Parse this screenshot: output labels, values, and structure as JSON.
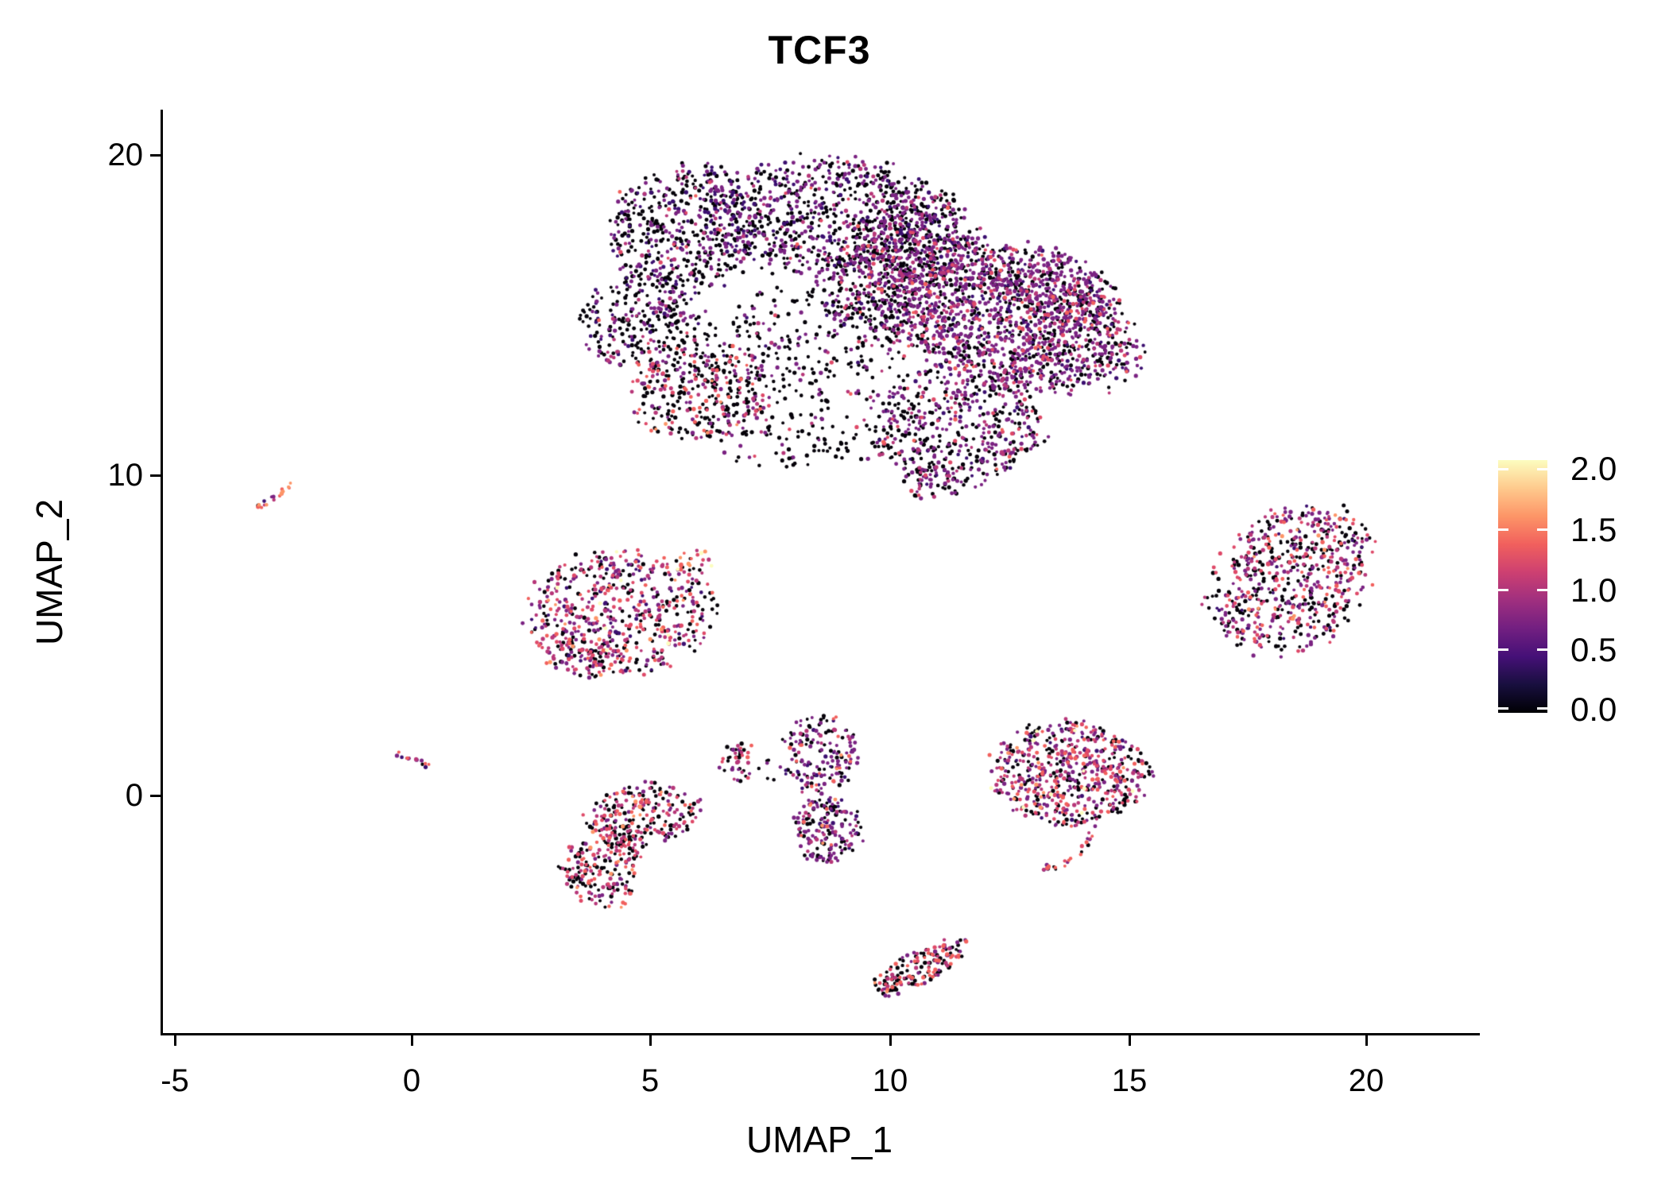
{
  "title": "TCF3",
  "axes": {
    "x_label": "UMAP_1",
    "y_label": "UMAP_2",
    "x_tick_labels": [
      "-5",
      "0",
      "5",
      "10",
      "15",
      "20"
    ],
    "y_tick_labels": [
      "20",
      "10",
      "0"
    ]
  },
  "colorbar": {
    "tick_labels": [
      "2.0",
      "1.5",
      "1.0",
      "0.5",
      "0.0"
    ],
    "gradient_bottom_to_top": [
      "#000004",
      "#180f3e",
      "#451077",
      "#721f81",
      "#9f2f7f",
      "#cd4071",
      "#f1605d",
      "#fd9567",
      "#feca8d",
      "#fcfdbf"
    ]
  },
  "chart_data": {
    "type": "scatter",
    "title": "TCF3",
    "xlabel": "UMAP_1",
    "ylabel": "UMAP_2",
    "xlim": [
      -5.2,
      22.4
    ],
    "ylim": [
      -7.5,
      21.4
    ],
    "x_ticks": [
      -5,
      0,
      5,
      10,
      15,
      20
    ],
    "y_ticks": [
      0,
      10,
      20
    ],
    "grid": false,
    "legend_position": "right",
    "colorbar_ticks": [
      0.0,
      0.5,
      1.0,
      1.5,
      2.0
    ],
    "colormap": "magma",
    "expression_range": [
      0.0,
      2.0
    ],
    "seed": 20,
    "palette": {
      "black": "#050109",
      "darkpurple": "#3b0f70",
      "purple": "#7b2382",
      "magenta": "#b73779",
      "pink": "#de4968",
      "salmon": "#f1605d",
      "orange": "#fd9567",
      "peach": "#feca8d",
      "cream": "#fcfdbf"
    },
    "color_rank": [
      "black",
      "darkpurple",
      "purple",
      "magenta",
      "pink",
      "salmon",
      "orange",
      "peach",
      "cream"
    ],
    "clusters": [
      {
        "name": "main-upper-left-lobe",
        "type": "ellipse",
        "cx": 5.7,
        "cy": 17.7,
        "rx": 1.55,
        "ry": 2.1,
        "rot": 5,
        "n": 480,
        "colors": {
          "black": 52,
          "darkpurple": 14,
          "purple": 26,
          "magenta": 5,
          "pink": 2,
          "salmon": 1
        }
      },
      {
        "name": "main-left-tip",
        "type": "ellipse",
        "cx": 4.8,
        "cy": 14.9,
        "rx": 1.25,
        "ry": 1.35,
        "rot": -15,
        "n": 260,
        "colors": {
          "black": 58,
          "purple": 24,
          "darkpurple": 10,
          "magenta": 5,
          "pink": 2,
          "salmon": 1
        }
      },
      {
        "name": "main-bottom-left",
        "type": "ellipse",
        "cx": 6.1,
        "cy": 12.6,
        "rx": 1.5,
        "ry": 1.5,
        "rot": 0,
        "n": 340,
        "colors": {
          "black": 50,
          "purple": 18,
          "magenta": 12,
          "pink": 10,
          "salmon": 7,
          "orange": 3
        }
      },
      {
        "name": "main-top-middle",
        "type": "ellipse",
        "cx": 8.6,
        "cy": 18.1,
        "rx": 2.4,
        "ry": 1.8,
        "rot": 0,
        "n": 700,
        "colors": {
          "black": 49,
          "purple": 31,
          "darkpurple": 12,
          "magenta": 5,
          "pink": 2,
          "salmon": 1
        }
      },
      {
        "name": "main-top-dome",
        "type": "ellipse",
        "cx": 10.6,
        "cy": 17.6,
        "rx": 1.2,
        "ry": 1.5,
        "rot": 0,
        "n": 260,
        "colors": {
          "black": 45,
          "purple": 36,
          "darkpurple": 8,
          "magenta": 7,
          "pink": 2,
          "salmon": 2
        }
      },
      {
        "name": "main-center",
        "type": "ellipse",
        "cx": 10.3,
        "cy": 16.4,
        "rx": 1.9,
        "ry": 1.7,
        "rot": -10,
        "n": 420,
        "colors": {
          "black": 44,
          "purple": 36,
          "darkpurple": 8,
          "magenta": 7,
          "pink": 3,
          "salmon": 2
        }
      },
      {
        "name": "main-right-lobe",
        "type": "ellipse",
        "cx": 12.4,
        "cy": 14.9,
        "rx": 2.9,
        "ry": 2.0,
        "rot": 17,
        "n": 1500,
        "colors": {
          "black": 33,
          "purple": 43,
          "darkpurple": 8,
          "magenta": 9,
          "pink": 5,
          "salmon": 2
        }
      },
      {
        "name": "main-right-shoulder",
        "type": "ellipse",
        "cx": 13.5,
        "cy": 15.9,
        "rx": 1.4,
        "ry": 1.15,
        "rot": 20,
        "n": 280,
        "colors": {
          "black": 30,
          "purple": 46,
          "darkpurple": 6,
          "magenta": 10,
          "pink": 6,
          "salmon": 2
        }
      },
      {
        "name": "main-sparse-middle",
        "type": "ellipse",
        "cx": 8.0,
        "cy": 13.9,
        "rx": 2.3,
        "ry": 1.9,
        "rot": 0,
        "n": 300,
        "colors": {
          "black": 68,
          "purple": 18,
          "darkpurple": 4,
          "magenta": 6,
          "pink": 3,
          "salmon": 1
        }
      },
      {
        "name": "main-bottom-lobe",
        "type": "ellipse",
        "cx": 11.5,
        "cy": 11.6,
        "rx": 1.8,
        "ry": 1.85,
        "rot": 0,
        "n": 520,
        "colors": {
          "black": 42,
          "purple": 38,
          "darkpurple": 6,
          "magenta": 8,
          "pink": 4,
          "salmon": 2
        }
      },
      {
        "name": "main-bottom-tip",
        "type": "ellipse",
        "cx": 11.0,
        "cy": 9.8,
        "rx": 0.7,
        "ry": 0.55,
        "rot": 0,
        "n": 50,
        "colors": {
          "black": 50,
          "purple": 30,
          "magenta": 12,
          "pink": 8
        }
      },
      {
        "name": "main-under-dust",
        "type": "ellipse",
        "cx": 8.3,
        "cy": 11.0,
        "rx": 1.8,
        "ry": 0.9,
        "rot": 0,
        "n": 90,
        "colors": {
          "black": 80,
          "purple": 12,
          "magenta": 5,
          "pink": 3
        }
      },
      {
        "name": "far-left-streak",
        "type": "path",
        "points": [
          [
            -3.25,
            8.95
          ],
          [
            -2.9,
            9.3
          ],
          [
            -2.55,
            9.7
          ]
        ],
        "spread": 0.1,
        "n": 20,
        "colors": {
          "salmon": 32,
          "orange": 16,
          "magenta": 18,
          "purple": 14,
          "darkpurple": 8,
          "black": 12
        }
      },
      {
        "name": "mid-left-main",
        "type": "ellipse",
        "cx": 4.4,
        "cy": 5.7,
        "rx": 1.95,
        "ry": 1.85,
        "rot": 0,
        "n": 560,
        "colors": {
          "black": 27,
          "purple": 22,
          "darkpurple": 7,
          "magenta": 18,
          "pink": 14,
          "salmon": 8,
          "orange": 2,
          "cream": 2
        }
      },
      {
        "name": "mid-left-tuft",
        "type": "ellipse",
        "cx": 5.9,
        "cy": 7.3,
        "rx": 0.5,
        "ry": 0.45,
        "rot": 0,
        "n": 24,
        "colors": {
          "black": 35,
          "salmon": 20,
          "magenta": 15,
          "pink": 10,
          "cream": 10,
          "orange": 10
        }
      },
      {
        "name": "mid-left-foot",
        "type": "ellipse",
        "cx": 3.6,
        "cy": 4.4,
        "rx": 0.9,
        "ry": 0.7,
        "rot": 10,
        "n": 90,
        "colors": {
          "black": 30,
          "magenta": 22,
          "purple": 20,
          "pink": 14,
          "salmon": 10,
          "orange": 4
        }
      },
      {
        "name": "right-oval",
        "type": "ellipse",
        "cx": 18.5,
        "cy": 6.7,
        "rx": 1.85,
        "ry": 2.05,
        "rot": -38,
        "n": 640,
        "colors": {
          "black": 37,
          "purple": 23,
          "magenta": 16,
          "pink": 11,
          "salmon": 8,
          "darkpurple": 3,
          "orange": 2
        }
      },
      {
        "name": "tiny-origin-clump",
        "type": "path",
        "points": [
          [
            -0.35,
            1.3
          ],
          [
            0.0,
            1.1
          ],
          [
            0.4,
            0.88
          ]
        ],
        "spread": 0.11,
        "n": 15,
        "colors": {
          "purple": 25,
          "salmon": 20,
          "magenta": 20,
          "black": 22,
          "orange": 8,
          "darkpurple": 5
        }
      },
      {
        "name": "small-crescent",
        "type": "ellipse",
        "cx": 6.85,
        "cy": 1.05,
        "rx": 0.38,
        "ry": 0.68,
        "rot": 15,
        "n": 42,
        "colors": {
          "black": 44,
          "pink": 18,
          "magenta": 14,
          "purple": 16,
          "salmon": 8
        }
      },
      {
        "name": "crescent-crumbs",
        "type": "ellipse",
        "cx": 7.45,
        "cy": 0.8,
        "rx": 0.3,
        "ry": 0.38,
        "rot": 0,
        "n": 6,
        "colors": {
          "black": 60,
          "purple": 40
        }
      },
      {
        "name": "column-upper",
        "type": "ellipse",
        "cx": 8.55,
        "cy": 1.3,
        "rx": 0.8,
        "ry": 1.2,
        "rot": 0,
        "n": 170,
        "colors": {
          "purple": 40,
          "black": 32,
          "darkpurple": 10,
          "magenta": 10,
          "salmon": 6,
          "orange": 2
        }
      },
      {
        "name": "column-lower",
        "type": "ellipse",
        "cx": 8.75,
        "cy": -1.05,
        "rx": 0.72,
        "ry": 1.05,
        "rot": 0,
        "n": 180,
        "colors": {
          "purple": 38,
          "black": 36,
          "darkpurple": 8,
          "magenta": 10,
          "salmon": 6,
          "orange": 2
        }
      },
      {
        "name": "b-cluster-upper",
        "type": "ellipse",
        "cx": 4.85,
        "cy": -0.6,
        "rx": 1.2,
        "ry": 0.95,
        "rot": -10,
        "n": 240,
        "colors": {
          "black": 37,
          "magenta": 22,
          "pink": 13,
          "salmon": 10,
          "purple": 12,
          "orange": 4,
          "darkpurple": 2
        }
      },
      {
        "name": "b-cluster-lower",
        "type": "ellipse",
        "cx": 3.95,
        "cy": -2.5,
        "rx": 0.85,
        "ry": 0.95,
        "rot": 20,
        "n": 150,
        "colors": {
          "black": 40,
          "magenta": 20,
          "pink": 12,
          "salmon": 12,
          "purple": 10,
          "orange": 6
        }
      },
      {
        "name": "b-cluster-neck",
        "type": "ellipse",
        "cx": 4.45,
        "cy": -1.55,
        "rx": 0.5,
        "ry": 0.6,
        "rot": 0,
        "n": 55,
        "colors": {
          "black": 55,
          "magenta": 15,
          "purple": 15,
          "pink": 10,
          "salmon": 5
        }
      },
      {
        "name": "right-mid-blob",
        "type": "ellipse",
        "cx": 13.85,
        "cy": 0.68,
        "rx": 1.6,
        "ry": 1.6,
        "rot": 0,
        "n": 620,
        "colors": {
          "black": 28,
          "purple": 24,
          "magenta": 19,
          "pink": 13,
          "salmon": 10,
          "darkpurple": 3,
          "orange": 2,
          "cream": 1
        }
      },
      {
        "name": "right-mid-tail",
        "type": "path",
        "points": [
          [
            14.3,
            -1.1
          ],
          [
            14.15,
            -1.65
          ],
          [
            13.85,
            -2.05
          ],
          [
            13.45,
            -2.3
          ],
          [
            13.3,
            -2.25
          ]
        ],
        "spread": 0.13,
        "n": 26,
        "colors": {
          "purple": 30,
          "black": 26,
          "magenta": 15,
          "salmon": 14,
          "orange": 8,
          "pink": 7
        }
      },
      {
        "name": "bottom-streak",
        "type": "ellipse",
        "cx": 10.7,
        "cy": -5.35,
        "rx": 1.05,
        "ry": 0.52,
        "rot": -27,
        "n": 175,
        "colors": {
          "black": 42,
          "salmon": 17,
          "magenta": 18,
          "purple": 14,
          "orange": 4,
          "pink": 5
        }
      }
    ]
  }
}
